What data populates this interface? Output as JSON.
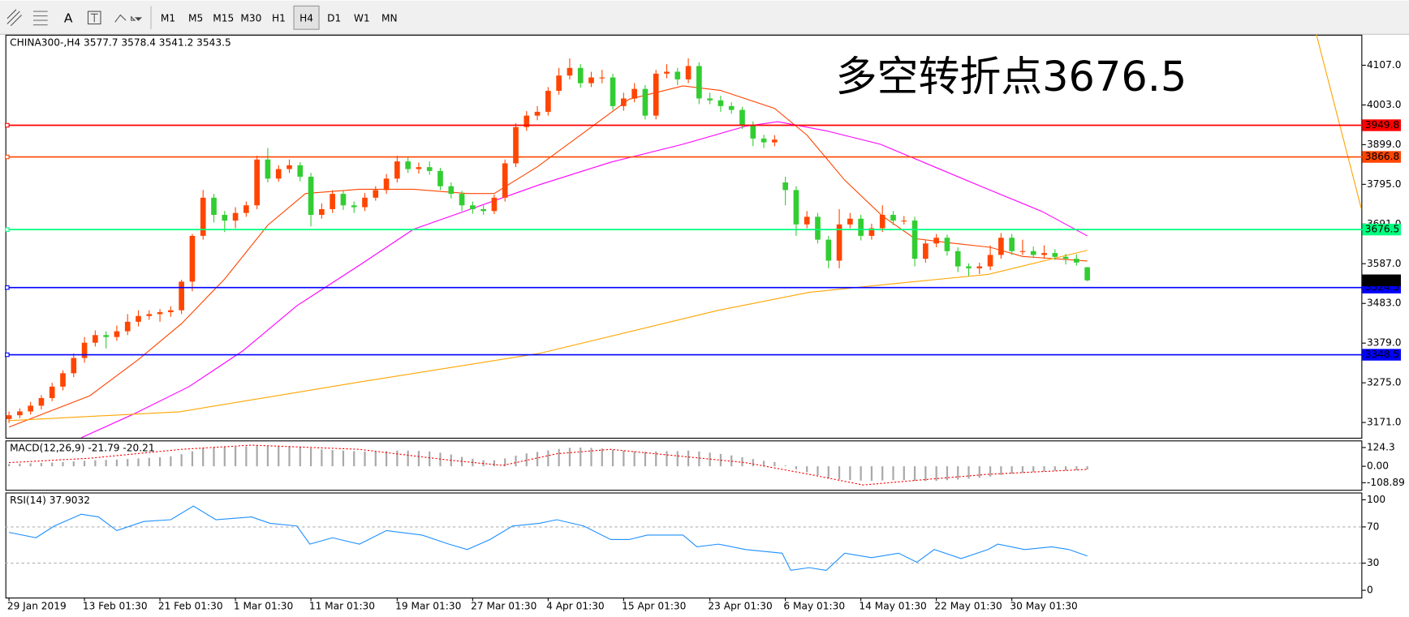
{
  "toolbar": {
    "text_tool": "A",
    "buttons": [
      "M1",
      "M5",
      "M15",
      "M30",
      "H1",
      "H4",
      "D1",
      "W1",
      "MN"
    ],
    "active": 5
  },
  "chart_data": [
    {
      "type": "candlestick",
      "title": "CHINA300-,H4  3577.7 3578.4 3541.2 3543.5",
      "annotation": "多空转折点3676.5",
      "up_color": "#ff4500",
      "down_color": "#32cd32",
      "ylim": [
        3131,
        4187
      ],
      "yticks": [
        {
          "value": 4107,
          "label": "4107.0"
        },
        {
          "value": 4003,
          "label": "4003.0"
        },
        {
          "value": 3899,
          "label": "3899.0"
        },
        {
          "value": 3795,
          "label": "3795.0"
        },
        {
          "value": 3691,
          "label": "3691.0"
        },
        {
          "value": 3587,
          "label": "3587.0"
        },
        {
          "value": 3483,
          "label": "3483.0"
        },
        {
          "value": 3379,
          "label": "3379.0"
        },
        {
          "value": 3275,
          "label": "3275.0"
        },
        {
          "value": 3171,
          "label": "3171.0"
        }
      ],
      "xticks": [
        {
          "value": 0,
          "label": "29 Jan 2019"
        },
        {
          "value": 7,
          "label": "13 Feb 01:30"
        },
        {
          "value": 14,
          "label": "21 Feb 01:30"
        },
        {
          "value": 21,
          "label": "1 Mar 01:30"
        },
        {
          "value": 28,
          "label": "11 Mar 01:30"
        },
        {
          "value": 36,
          "label": "19 Mar 01:30"
        },
        {
          "value": 43,
          "label": "27 Mar 01:30"
        },
        {
          "value": 50,
          "label": "4 Apr 01:30"
        },
        {
          "value": 57,
          "label": "15 Apr 01:30"
        },
        {
          "value": 65,
          "label": "23 Apr 01:30"
        },
        {
          "value": 72,
          "label": "6 May 01:30"
        },
        {
          "value": 79,
          "label": "14 May 01:30"
        },
        {
          "value": 86,
          "label": "22 May 01:30"
        },
        {
          "value": 93,
          "label": "30 May 01:30"
        }
      ],
      "open": [
        3180,
        3190,
        3200,
        3215,
        3235,
        3265,
        3300,
        3340,
        3380,
        3400,
        3395,
        3410,
        3435,
        3450,
        3455,
        3460,
        3465,
        3540,
        3660,
        3760,
        3715,
        3700,
        3720,
        3740,
        3860,
        3810,
        3835,
        3845,
        3815,
        3715,
        3730,
        3770,
        3740,
        3735,
        3760,
        3780,
        3810,
        3855,
        3835,
        3840,
        3830,
        3790,
        3770,
        3740,
        3730,
        3725,
        3760,
        3850,
        3945,
        3975,
        3985,
        4040,
        4080,
        4100,
        4060,
        4075,
        4075,
        4000,
        4020,
        4045,
        3975,
        4085,
        4090,
        4070,
        4105,
        4020,
        4015,
        4000,
        3990,
        3950,
        3915,
        3905,
        3800,
        3780,
        3690,
        3710,
        3650,
        3595,
        3690,
        3705,
        3660,
        3680,
        3715,
        3700,
        3700,
        3600,
        3640,
        3655,
        3620,
        3580,
        3575,
        3580,
        3610,
        3655,
        3620,
        3620,
        3610,
        3615,
        3605,
        3600,
        3577.7
      ],
      "high": [
        3200,
        3208,
        3225,
        3243,
        3275,
        3308,
        3352,
        3395,
        3412,
        3410,
        3425,
        3455,
        3465,
        3465,
        3468,
        3475,
        3545,
        3665,
        3780,
        3770,
        3725,
        3735,
        3750,
        3870,
        3890,
        3845,
        3860,
        3853,
        3825,
        3745,
        3780,
        3778,
        3750,
        3772,
        3790,
        3822,
        3870,
        3865,
        3852,
        3855,
        3838,
        3800,
        3778,
        3750,
        3740,
        3768,
        3860,
        3955,
        3987,
        4000,
        4050,
        4100,
        4125,
        4110,
        4090,
        4095,
        4085,
        4035,
        4060,
        4055,
        4095,
        4110,
        4100,
        4125,
        4115,
        4035,
        4027,
        4010,
        3998,
        3960,
        3925,
        3924,
        3815,
        3790,
        3725,
        3720,
        3660,
        3730,
        3720,
        3715,
        3692,
        3740,
        3725,
        3712,
        3710,
        3648,
        3665,
        3663,
        3630,
        3588,
        3590,
        3635,
        3667,
        3665,
        3650,
        3632,
        3635,
        3625,
        3613,
        3612,
        3578.4
      ],
      "low": [
        3170,
        3182,
        3192,
        3205,
        3227,
        3255,
        3290,
        3328,
        3370,
        3365,
        3385,
        3400,
        3423,
        3440,
        3435,
        3448,
        3455,
        3515,
        3650,
        3695,
        3670,
        3680,
        3710,
        3730,
        3800,
        3802,
        3825,
        3803,
        3685,
        3705,
        3720,
        3728,
        3720,
        3725,
        3752,
        3770,
        3800,
        3825,
        3823,
        3820,
        3780,
        3758,
        3725,
        3718,
        3715,
        3717,
        3750,
        3840,
        3935,
        3963,
        3975,
        4030,
        4070,
        4048,
        4050,
        4060,
        3990,
        3988,
        4010,
        3965,
        3965,
        4073,
        4055,
        4060,
        4005,
        4005,
        3985,
        3980,
        3940,
        3895,
        3890,
        3895,
        3740,
        3660,
        3680,
        3640,
        3575,
        3575,
        3680,
        3648,
        3650,
        3670,
        3688,
        3690,
        3580,
        3590,
        3630,
        3608,
        3565,
        3555,
        3560,
        3570,
        3600,
        3610,
        3610,
        3602,
        3600,
        3597,
        3585,
        3582,
        3541.2
      ],
      "close": [
        3190,
        3200,
        3215,
        3235,
        3265,
        3300,
        3340,
        3380,
        3400,
        3395,
        3410,
        3435,
        3450,
        3455,
        3460,
        3465,
        3540,
        3660,
        3760,
        3715,
        3700,
        3720,
        3740,
        3860,
        3810,
        3835,
        3845,
        3815,
        3715,
        3730,
        3770,
        3740,
        3735,
        3760,
        3780,
        3810,
        3855,
        3835,
        3840,
        3830,
        3790,
        3770,
        3740,
        3730,
        3725,
        3760,
        3850,
        3945,
        3975,
        3985,
        4040,
        4080,
        4100,
        4060,
        4075,
        4075,
        4000,
        4020,
        4045,
        3975,
        4085,
        4090,
        4070,
        4105,
        4020,
        4015,
        4000,
        3990,
        3950,
        3915,
        3905,
        3912,
        3780,
        3690,
        3710,
        3650,
        3595,
        3690,
        3705,
        3660,
        3680,
        3715,
        3700,
        3700,
        3600,
        3640,
        3655,
        3620,
        3580,
        3575,
        3580,
        3610,
        3655,
        3620,
        3620,
        3610,
        3615,
        3605,
        3600,
        3590,
        3543.5
      ],
      "series": [
        {
          "color": "#ff4500",
          "x": [
            0,
            7.5,
            12,
            16,
            20,
            24,
            27.5,
            32.5,
            37.5,
            42.5,
            45,
            49,
            53,
            57.5,
            62.5,
            66,
            71,
            74,
            77.5,
            81,
            84,
            87.5,
            91,
            94,
            100
          ],
          "values": [
            3159,
            3241,
            3336,
            3430,
            3547,
            3688,
            3771,
            3782,
            3782,
            3771,
            3771,
            3841,
            3924,
            4018,
            4053,
            4041,
            3994,
            3924,
            3806,
            3712,
            3653,
            3641,
            3630,
            3606,
            3594
          ]
        },
        {
          "color": "#ff00ff",
          "x": [
            6.7,
            11.7,
            16.7,
            21.7,
            26.7,
            32.5,
            37.5,
            43.3,
            49.2,
            55.8,
            62.5,
            68.3,
            71.3,
            75.8,
            80.8,
            85.8,
            90.8,
            95.8,
            100
          ],
          "values": [
            3131,
            3195,
            3265,
            3359,
            3477,
            3583,
            3677,
            3735,
            3794,
            3853,
            3900,
            3947,
            3959,
            3935,
            3900,
            3841,
            3782,
            3724,
            3660
          ]
        },
        {
          "color": "#ffa500",
          "x": [
            0,
            15.8,
            32.5,
            49.2,
            65.8,
            74.2,
            82.5,
            90.8,
            100
          ],
          "values": [
            3176,
            3199,
            3277,
            3352,
            3465,
            3512,
            3536,
            3559,
            3622
          ]
        }
      ],
      "levels": [
        {
          "value": 3949.8,
          "color": "#ff0000"
        },
        {
          "value": 3866.8,
          "color": "#ff4500"
        },
        {
          "value": 3676.5,
          "color": "#00ff7f"
        },
        {
          "value": 3524.5,
          "color": "#0000ff"
        },
        {
          "value": 3348.5,
          "color": "#0000ff"
        }
      ]
    },
    {
      "type": "macd",
      "title": "MACD(12,26,9) -21.79 -20.21",
      "ylim": [
        -156,
        171
      ],
      "yticks": [
        124.3,
        {
          "value": 0,
          "label": "0.00"
        },
        -108.89
      ],
      "values": [
        15,
        18,
        20,
        22,
        25,
        28,
        32,
        36,
        40,
        42,
        44,
        48,
        52,
        56,
        60,
        66,
        80,
        100,
        120,
        125,
        128,
        130,
        132,
        140,
        138,
        136,
        134,
        130,
        120,
        112,
        108,
        104,
        100,
        98,
        97,
        100,
        104,
        104,
        102,
        98,
        90,
        78,
        62,
        50,
        40,
        40,
        52,
        70,
        85,
        95,
        105,
        115,
        122,
        124,
        122,
        118,
        110,
        104,
        100,
        96,
        98,
        100,
        100,
        104,
        98,
        90,
        82,
        72,
        60,
        48,
        36,
        28,
        5,
        -20,
        -40,
        -60,
        -80,
        -88,
        -92,
        -95,
        -96,
        -94,
        -92,
        -92,
        -96,
        -98,
        -96,
        -92,
        -88,
        -82,
        -76,
        -68,
        -58,
        -50,
        -44,
        -38,
        -34,
        -30,
        -28,
        -26,
        -21.79
      ],
      "bar_color": "#a9a9a9",
      "series": [
        {
          "color": "#ff0000",
          "x": [
            0,
            7.5,
            16,
            22.5,
            32.5,
            40.8,
            45.8,
            50.8,
            55.8,
            62.5,
            68.3,
            74.2,
            79.2,
            85.8,
            90.8,
            100
          ],
          "values": [
            24,
            53,
            112,
            140,
            112,
            41,
            6,
            83,
            112,
            65,
            24,
            -53,
            -124,
            -83,
            -53,
            -20.21
          ]
        }
      ]
    },
    {
      "type": "line",
      "title": "RSI(14) 37.9032",
      "ylim": [
        -8,
        108
      ],
      "yticks": [
        100,
        70,
        30,
        0
      ],
      "levels": [
        70,
        30
      ],
      "series": [
        {
          "color": "#1e90ff",
          "x": [
            0,
            2.5,
            4.2,
            6.7,
            8.3,
            10,
            12.5,
            15,
            17.1,
            19.2,
            22.5,
            24.2,
            26.7,
            27.9,
            30,
            32.5,
            35,
            38.3,
            40.8,
            42.5,
            44.6,
            46.7,
            49.2,
            50.8,
            53.3,
            55.8,
            57.5,
            59.2,
            62.5,
            63.8,
            65.8,
            68.3,
            71.7,
            72.5,
            74.2,
            75.8,
            77.5,
            80,
            82.5,
            84.2,
            85.8,
            88.3,
            90.8,
            91.7,
            94.2,
            96.7,
            98.3,
            100
          ],
          "values": [
            64,
            58,
            71,
            84,
            81,
            66,
            76,
            78,
            93,
            78,
            81,
            74,
            71,
            51,
            58,
            51,
            66,
            61,
            51,
            45,
            56,
            71,
            74,
            78,
            71,
            56,
            56,
            61,
            61,
            48,
            51,
            45,
            41,
            22,
            25,
            22,
            41,
            36,
            41,
            31,
            45,
            35,
            45,
            51,
            45,
            48,
            45,
            37.9032
          ]
        }
      ]
    }
  ]
}
